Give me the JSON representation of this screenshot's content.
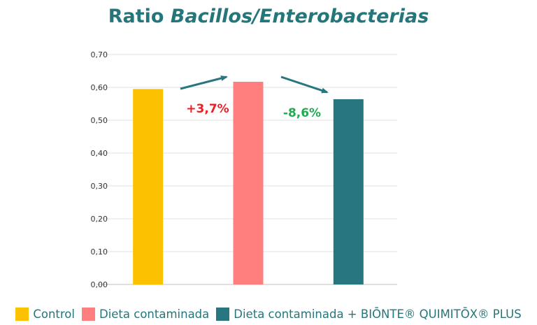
{
  "title": {
    "plain": "Ratio",
    "italic": "Bacillos/Enterobacterias"
  },
  "colors": {
    "accent": "#24767b"
  },
  "chart_data": {
    "type": "bar",
    "categories": [
      "Control",
      "Dieta contaminada",
      "Dieta contaminada + BIŌNTE® QUIMITŌX® PLUS"
    ],
    "values": [
      0.595,
      0.617,
      0.564
    ],
    "colors": [
      "#fcc100",
      "#ff7f7f",
      "#287680"
    ],
    "ylim": [
      0,
      0.7
    ],
    "yticks": [
      "0,00",
      "0,10",
      "0,20",
      "0,30",
      "0,40",
      "0,50",
      "0,60",
      "0,70"
    ],
    "grid": true,
    "legend_position": "bottom",
    "annotations": [
      {
        "text": "+3,7%",
        "color": "#ee1c24"
      },
      {
        "text": "-8,6%",
        "color": "#1fab4f"
      }
    ]
  }
}
